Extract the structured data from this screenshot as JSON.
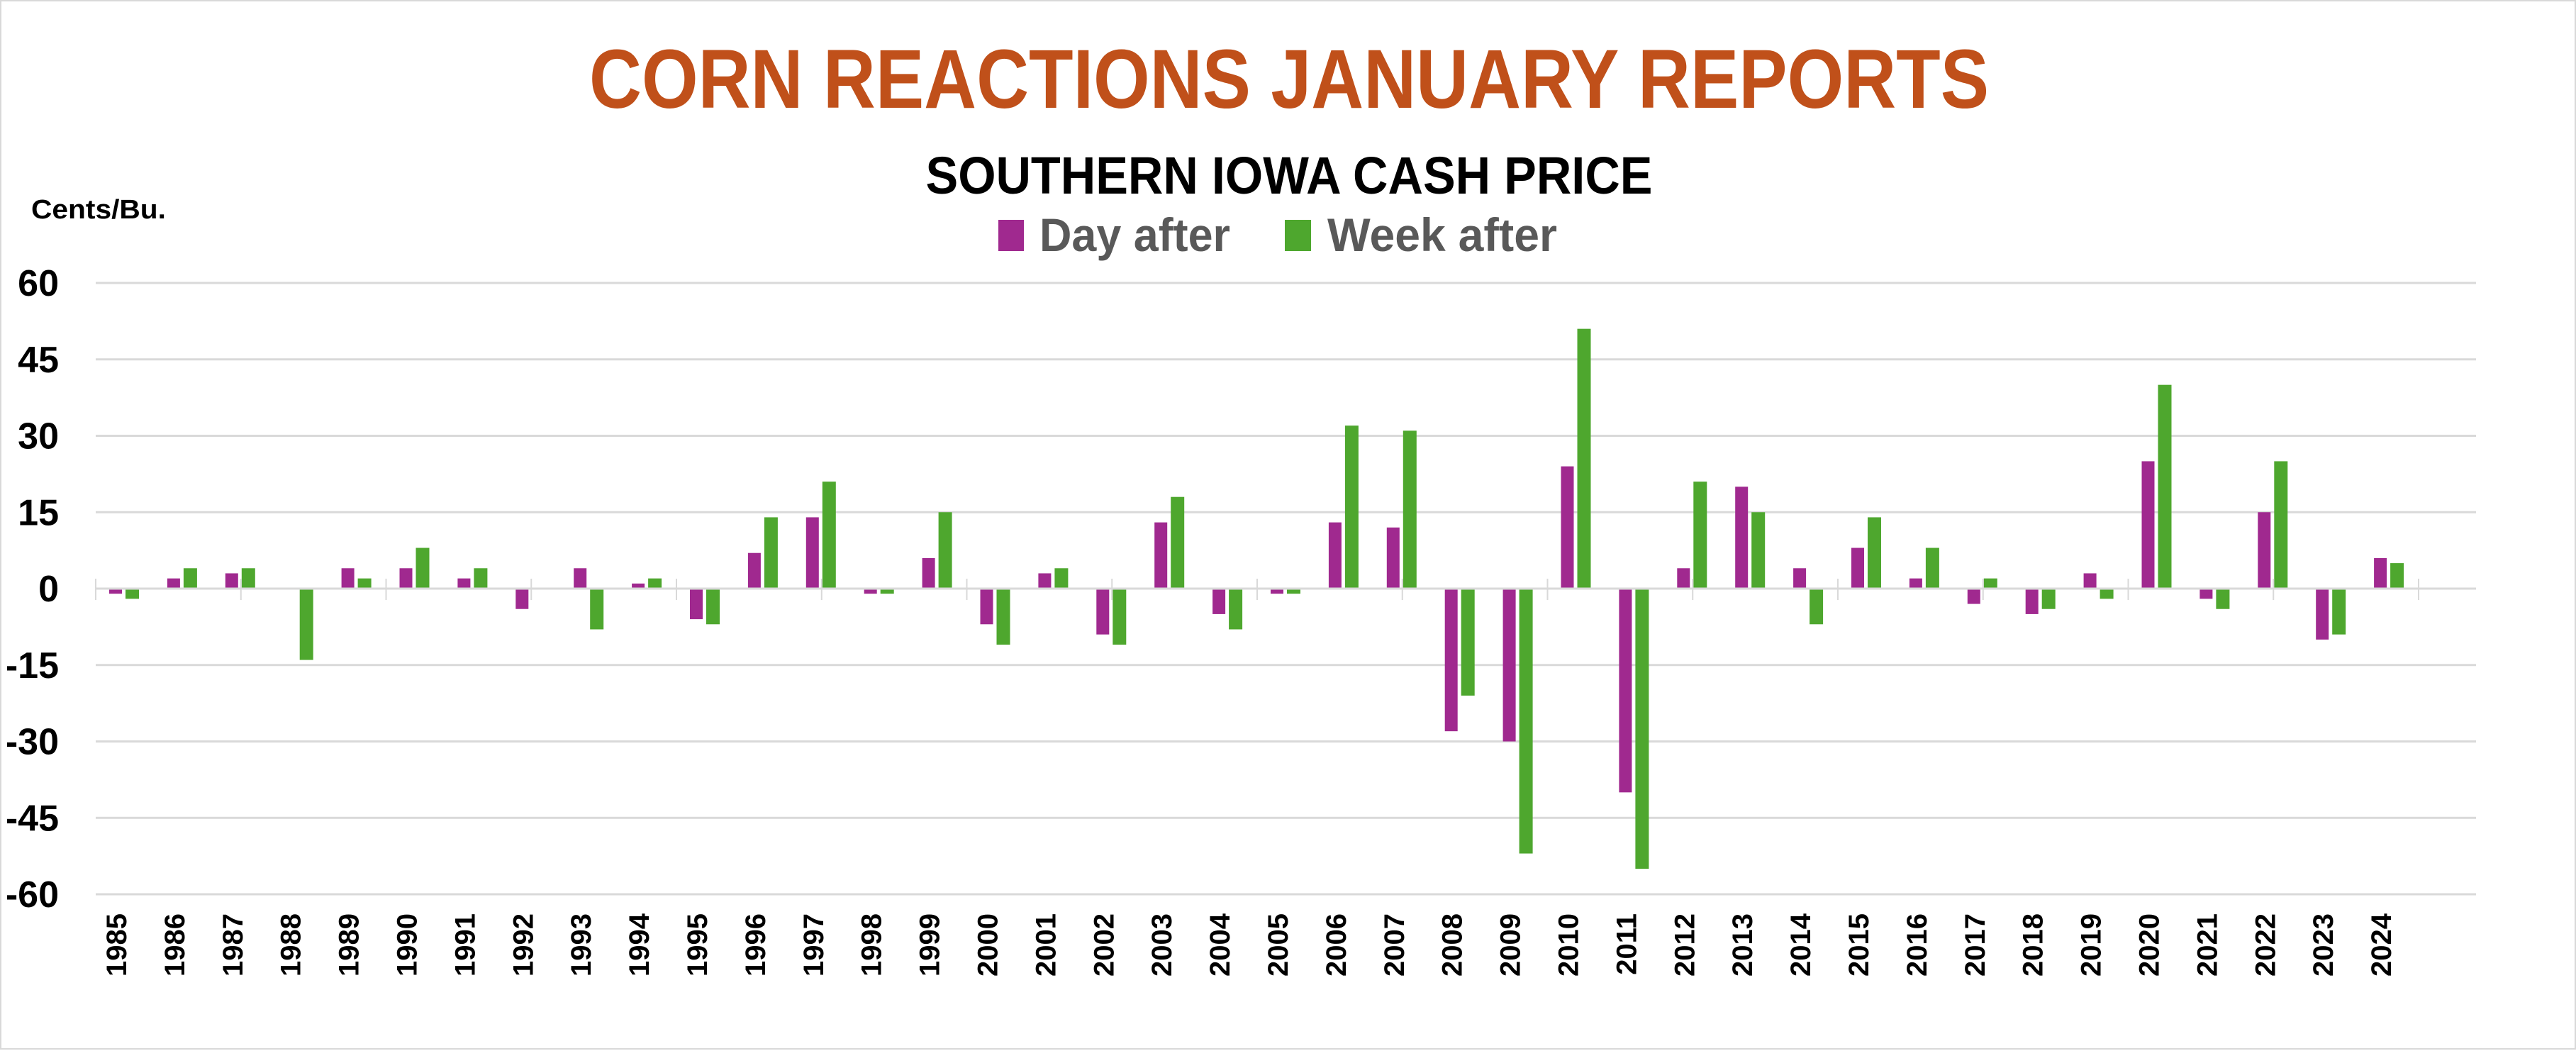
{
  "chart_data": {
    "type": "bar",
    "title": "CORN REACTIONS JANUARY REPORTS",
    "subtitle": "SOUTHERN IOWA CASH PRICE",
    "ylabel": "Cents/Bu.",
    "xlabel": "",
    "ylim": [
      -60,
      60
    ],
    "yticks": [
      60,
      45,
      30,
      15,
      0,
      -15,
      -30,
      -45,
      -60
    ],
    "grid": true,
    "legend_position": "top-center",
    "title_color": "#C0501A",
    "categories": [
      "1985",
      "1986",
      "1987",
      "1988",
      "1989",
      "1990",
      "1991",
      "1992",
      "1993",
      "1994",
      "1995",
      "1996",
      "1997",
      "1998",
      "1999",
      "2000",
      "2001",
      "2002",
      "2003",
      "2004",
      "2005",
      "2006",
      "2007",
      "2008",
      "2009",
      "2010",
      "2011",
      "2012",
      "2013",
      "2014",
      "2015",
      "2016",
      "2017",
      "2018",
      "2019",
      "2020",
      "2021",
      "2022",
      "2023",
      "2024"
    ],
    "series": [
      {
        "name": "Day after",
        "color": "#A0298F",
        "values": [
          -1,
          2,
          3,
          0,
          4,
          4,
          2,
          -4,
          4,
          1,
          -6,
          7,
          14,
          -1,
          6,
          -7,
          3,
          -9,
          13,
          -5,
          -1,
          13,
          12,
          -28,
          -30,
          24,
          -40,
          4,
          20,
          4,
          8,
          2,
          -3,
          -5,
          3,
          25,
          -2,
          15,
          -10,
          6
        ]
      },
      {
        "name": "Week after",
        "color": "#4EA72E",
        "values": [
          -2,
          4,
          4,
          -14,
          2,
          8,
          4,
          0,
          -8,
          2,
          -7,
          14,
          21,
          -1,
          15,
          -11,
          4,
          -11,
          18,
          -8,
          -1,
          32,
          31,
          -21,
          -52,
          51,
          -55,
          21,
          15,
          -7,
          14,
          8,
          2,
          -4,
          -2,
          40,
          -4,
          25,
          -9,
          5
        ]
      }
    ]
  }
}
